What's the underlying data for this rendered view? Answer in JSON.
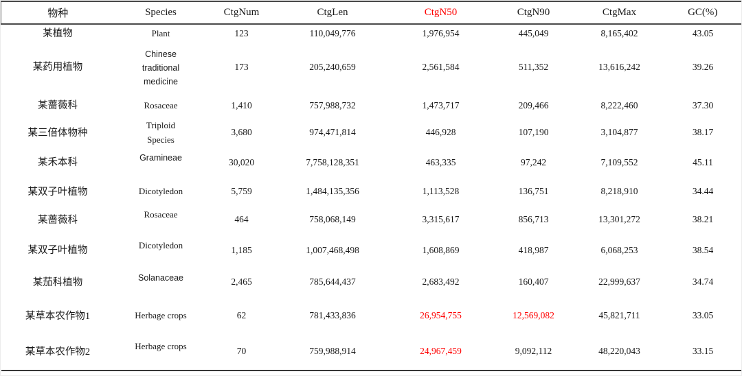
{
  "table": {
    "colors": {
      "highlight_red": "#ff0000",
      "text": "#1a1a1a"
    },
    "columns": [
      {
        "key": "cn_name",
        "label": "物种"
      },
      {
        "key": "species",
        "label": "Species"
      },
      {
        "key": "ctg_num",
        "label": "CtgNum"
      },
      {
        "key": "ctg_len",
        "label": "CtgLen"
      },
      {
        "key": "ctg_n50",
        "label": "CtgN50"
      },
      {
        "key": "ctg_n90",
        "label": "CtgN90"
      },
      {
        "key": "ctg_max",
        "label": "CtgMax"
      },
      {
        "key": "gc",
        "label": "GC(%)"
      }
    ],
    "header_red_column": "ctg_n50",
    "rows": [
      {
        "cn_name": "某植物",
        "species": "Plant",
        "ctg_num": "123",
        "ctg_len": "110,049,776",
        "ctg_n50": "1,976,954",
        "ctg_n90": "445,049",
        "ctg_max": "8,165,402",
        "gc": "43.05"
      },
      {
        "cn_name": "某药用植物",
        "species": "Chinese\ntraditional\nmedicine",
        "species_sans": true,
        "ctg_num": "173",
        "ctg_len": "205,240,659",
        "ctg_n50": "2,561,584",
        "ctg_n90": "511,352",
        "ctg_max": "13,616,242",
        "gc": "39.26"
      },
      {
        "cn_name": "某蔷薇科",
        "species": "Rosaceae",
        "ctg_num": "1,410",
        "ctg_len": "757,988,732",
        "ctg_n50": "1,473,717",
        "ctg_n90": "209,466",
        "ctg_max": "8,222,460",
        "gc": "37.30"
      },
      {
        "cn_name": "某三倍体物种",
        "species": "Triploid\nSpecies",
        "ctg_num": "3,680",
        "ctg_len": "974,471,814",
        "ctg_n50": "446,928",
        "ctg_n90": "107,190",
        "ctg_max": "3,104,877",
        "gc": "38.17"
      },
      {
        "cn_name": "某禾本科",
        "species": "Gramineae",
        "species_sans": true,
        "species_raised": true,
        "ctg_num": "30,020",
        "ctg_len": "7,758,128,351",
        "ctg_n50": "463,335",
        "ctg_n90": "97,242",
        "ctg_max": "7,109,552",
        "gc": "45.11"
      },
      {
        "cn_name": "某双子叶植物",
        "species": "Dicotyledon",
        "ctg_num": "5,759",
        "ctg_len": "1,484,135,356",
        "ctg_n50": "1,113,528",
        "ctg_n90": "136,751",
        "ctg_max": "8,218,910",
        "gc": "34.44"
      },
      {
        "cn_name": "某蔷薇科",
        "species": "Rosaceae",
        "species_raised": true,
        "ctg_num": "464",
        "ctg_len": "758,068,149",
        "ctg_n50": "3,315,617",
        "ctg_n90": "856,713",
        "ctg_max": "13,301,272",
        "gc": "38.21"
      },
      {
        "cn_name": "某双子叶植物",
        "species": "Dicotyledon",
        "species_raised": true,
        "ctg_num": "1,185",
        "ctg_len": "1,007,468,498",
        "ctg_n50": "1,608,869",
        "ctg_n90": "418,987",
        "ctg_max": "6,068,253",
        "gc": "38.54"
      },
      {
        "cn_name": "某茄科植物",
        "species": "Solanaceae",
        "species_sans": true,
        "species_raised": true,
        "ctg_num": "2,465",
        "ctg_len": "785,644,437",
        "ctg_n50": "2,683,492",
        "ctg_n90": "160,407",
        "ctg_max": "22,999,637",
        "gc": "34.74"
      },
      {
        "cn_name": "某草本农作物1",
        "species": "Herbage crops",
        "ctg_num": "62",
        "ctg_len": "781,433,836",
        "ctg_n50": "26,954,755",
        "ctg_n90": "12,569,082",
        "ctg_max": "45,821,711",
        "gc": "33.05",
        "red_fields": [
          "ctg_n50",
          "ctg_n90"
        ]
      },
      {
        "cn_name": "某草本农作物2",
        "species": "Herbage crops",
        "species_raised": true,
        "ctg_num": "70",
        "ctg_len": "759,988,914",
        "ctg_n50": "24,967,459",
        "ctg_n90": "9,092,112",
        "ctg_max": "48,220,043",
        "gc": "33.15",
        "red_fields": [
          "ctg_n50"
        ]
      }
    ]
  }
}
